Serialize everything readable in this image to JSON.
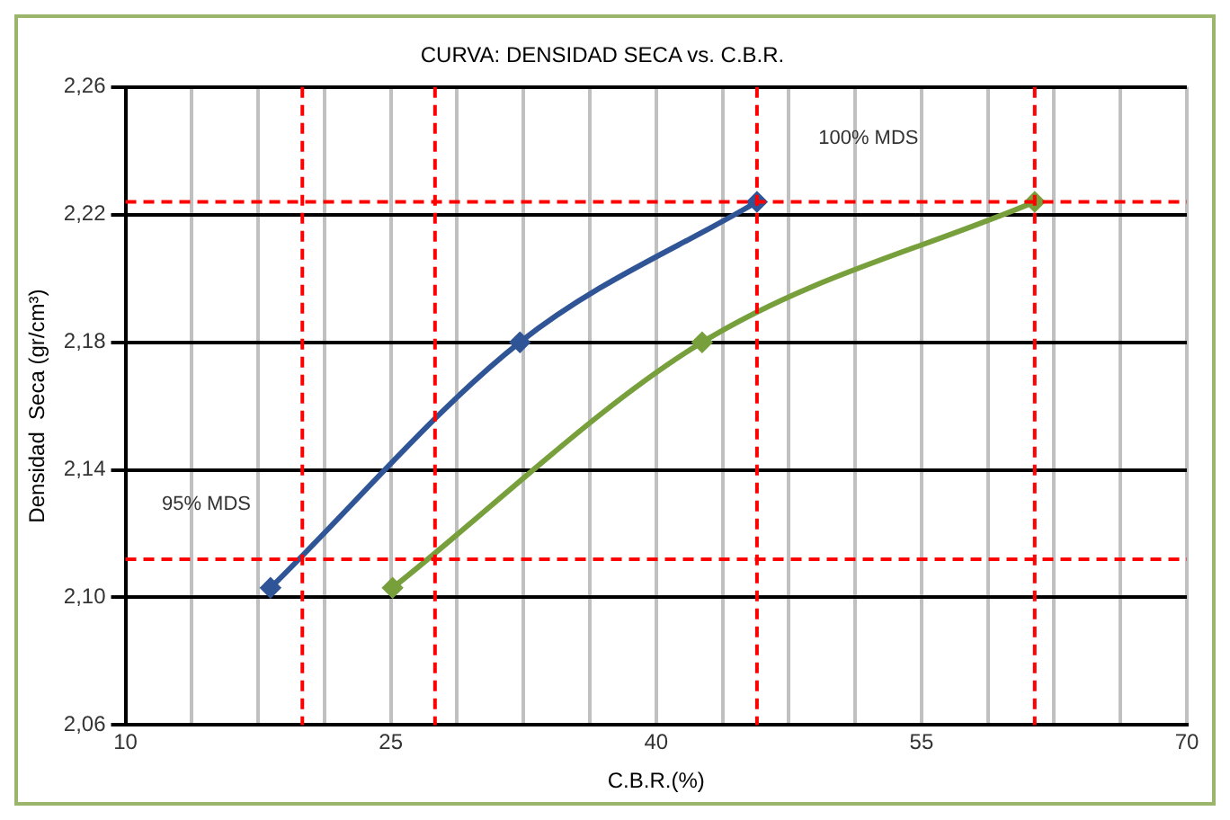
{
  "chart_data": {
    "type": "line",
    "title": "CURVA: DENSIDAD SECA vs. C.B.R.",
    "xlabel": "C.B.R.(%)",
    "ylabel": "Densidad  Seca (gr/cm³)",
    "series": [
      {
        "color": "#2f5597",
        "x": [
          18.2,
          32.3,
          45.7
        ],
        "values": [
          2.103,
          2.18,
          2.224
        ]
      },
      {
        "color": "#77a03c",
        "x": [
          25.1,
          42.6,
          61.4
        ],
        "values": [
          2.103,
          2.18,
          2.224
        ]
      }
    ],
    "xlim": [
      10,
      70
    ],
    "xticks": [
      10,
      {
        "value": 13.75,
        "label": null
      },
      {
        "value": 17.5,
        "label": null
      },
      {
        "value": 21.25,
        "label": null
      },
      25,
      {
        "value": 28.75,
        "label": null
      },
      {
        "value": 32.5,
        "label": null
      },
      {
        "value": 36.25,
        "label": null
      },
      40,
      {
        "value": 43.75,
        "label": null
      },
      {
        "value": 47.5,
        "label": null
      },
      {
        "value": 51.25,
        "label": null
      },
      55,
      {
        "value": 58.75,
        "label": null
      },
      {
        "value": 62.5,
        "label": null
      },
      {
        "value": 66.25,
        "label": null
      },
      70
    ],
    "ylim": [
      2.06,
      2.26
    ],
    "yticks": [
      {
        "value": 2.06,
        "label": "2,06"
      },
      {
        "value": 2.1,
        "label": "2,10"
      },
      {
        "value": 2.14,
        "label": "2,14"
      },
      {
        "value": 2.18,
        "label": "2,18"
      },
      {
        "value": 2.22,
        "label": "2,22"
      },
      {
        "value": 2.26,
        "label": "2,26"
      }
    ],
    "ref_lines": [
      {
        "axis": "y",
        "value": 2.224,
        "label": "100% MDS",
        "color": "#ff0000",
        "line_style": "dashed"
      },
      {
        "axis": "x",
        "value": 45.7,
        "color": "#ff0000",
        "line_style": "dashed"
      },
      {
        "axis": "x",
        "value": 61.4,
        "color": "#ff0000",
        "line_style": "dashed"
      },
      {
        "axis": "y",
        "value": 2.112,
        "label": "95% MDS",
        "color": "#ff0000",
        "line_style": "dashed"
      },
      {
        "axis": "x",
        "value": 20,
        "color": "#ff0000",
        "line_style": "dashed"
      },
      {
        "axis": "x",
        "value": 27.5,
        "color": "#ff0000",
        "line_style": "dashed"
      }
    ],
    "grid": true,
    "marker": "diamond",
    "line_style": "solid",
    "legend": false
  }
}
